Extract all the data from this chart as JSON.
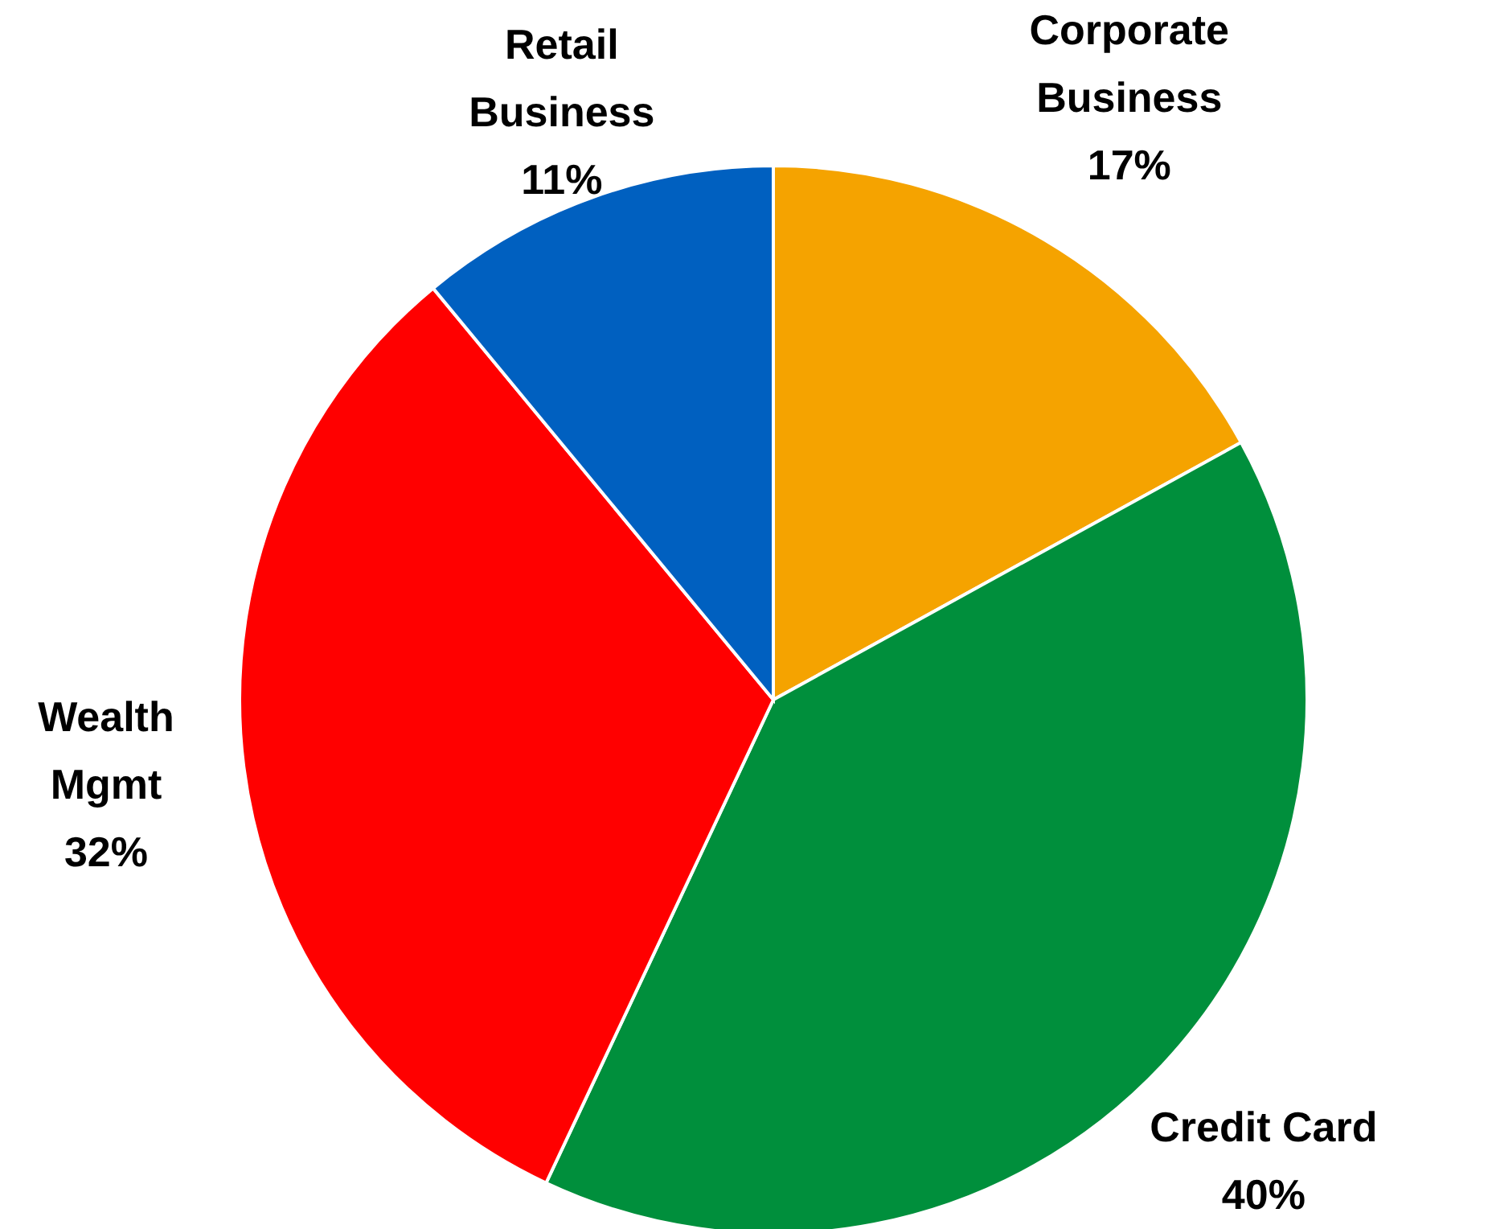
{
  "chart_data": {
    "type": "pie",
    "categories": [
      "Corporate Business",
      "Credit Card",
      "Wealth Mgmt",
      "Retail Business"
    ],
    "values": [
      17,
      40,
      32,
      11
    ],
    "colors": [
      "#f5a300",
      "#008f3c",
      "#ff0000",
      "#0060c0"
    ],
    "value_labels": [
      "17%",
      "40%",
      "32%",
      "11%"
    ]
  }
}
